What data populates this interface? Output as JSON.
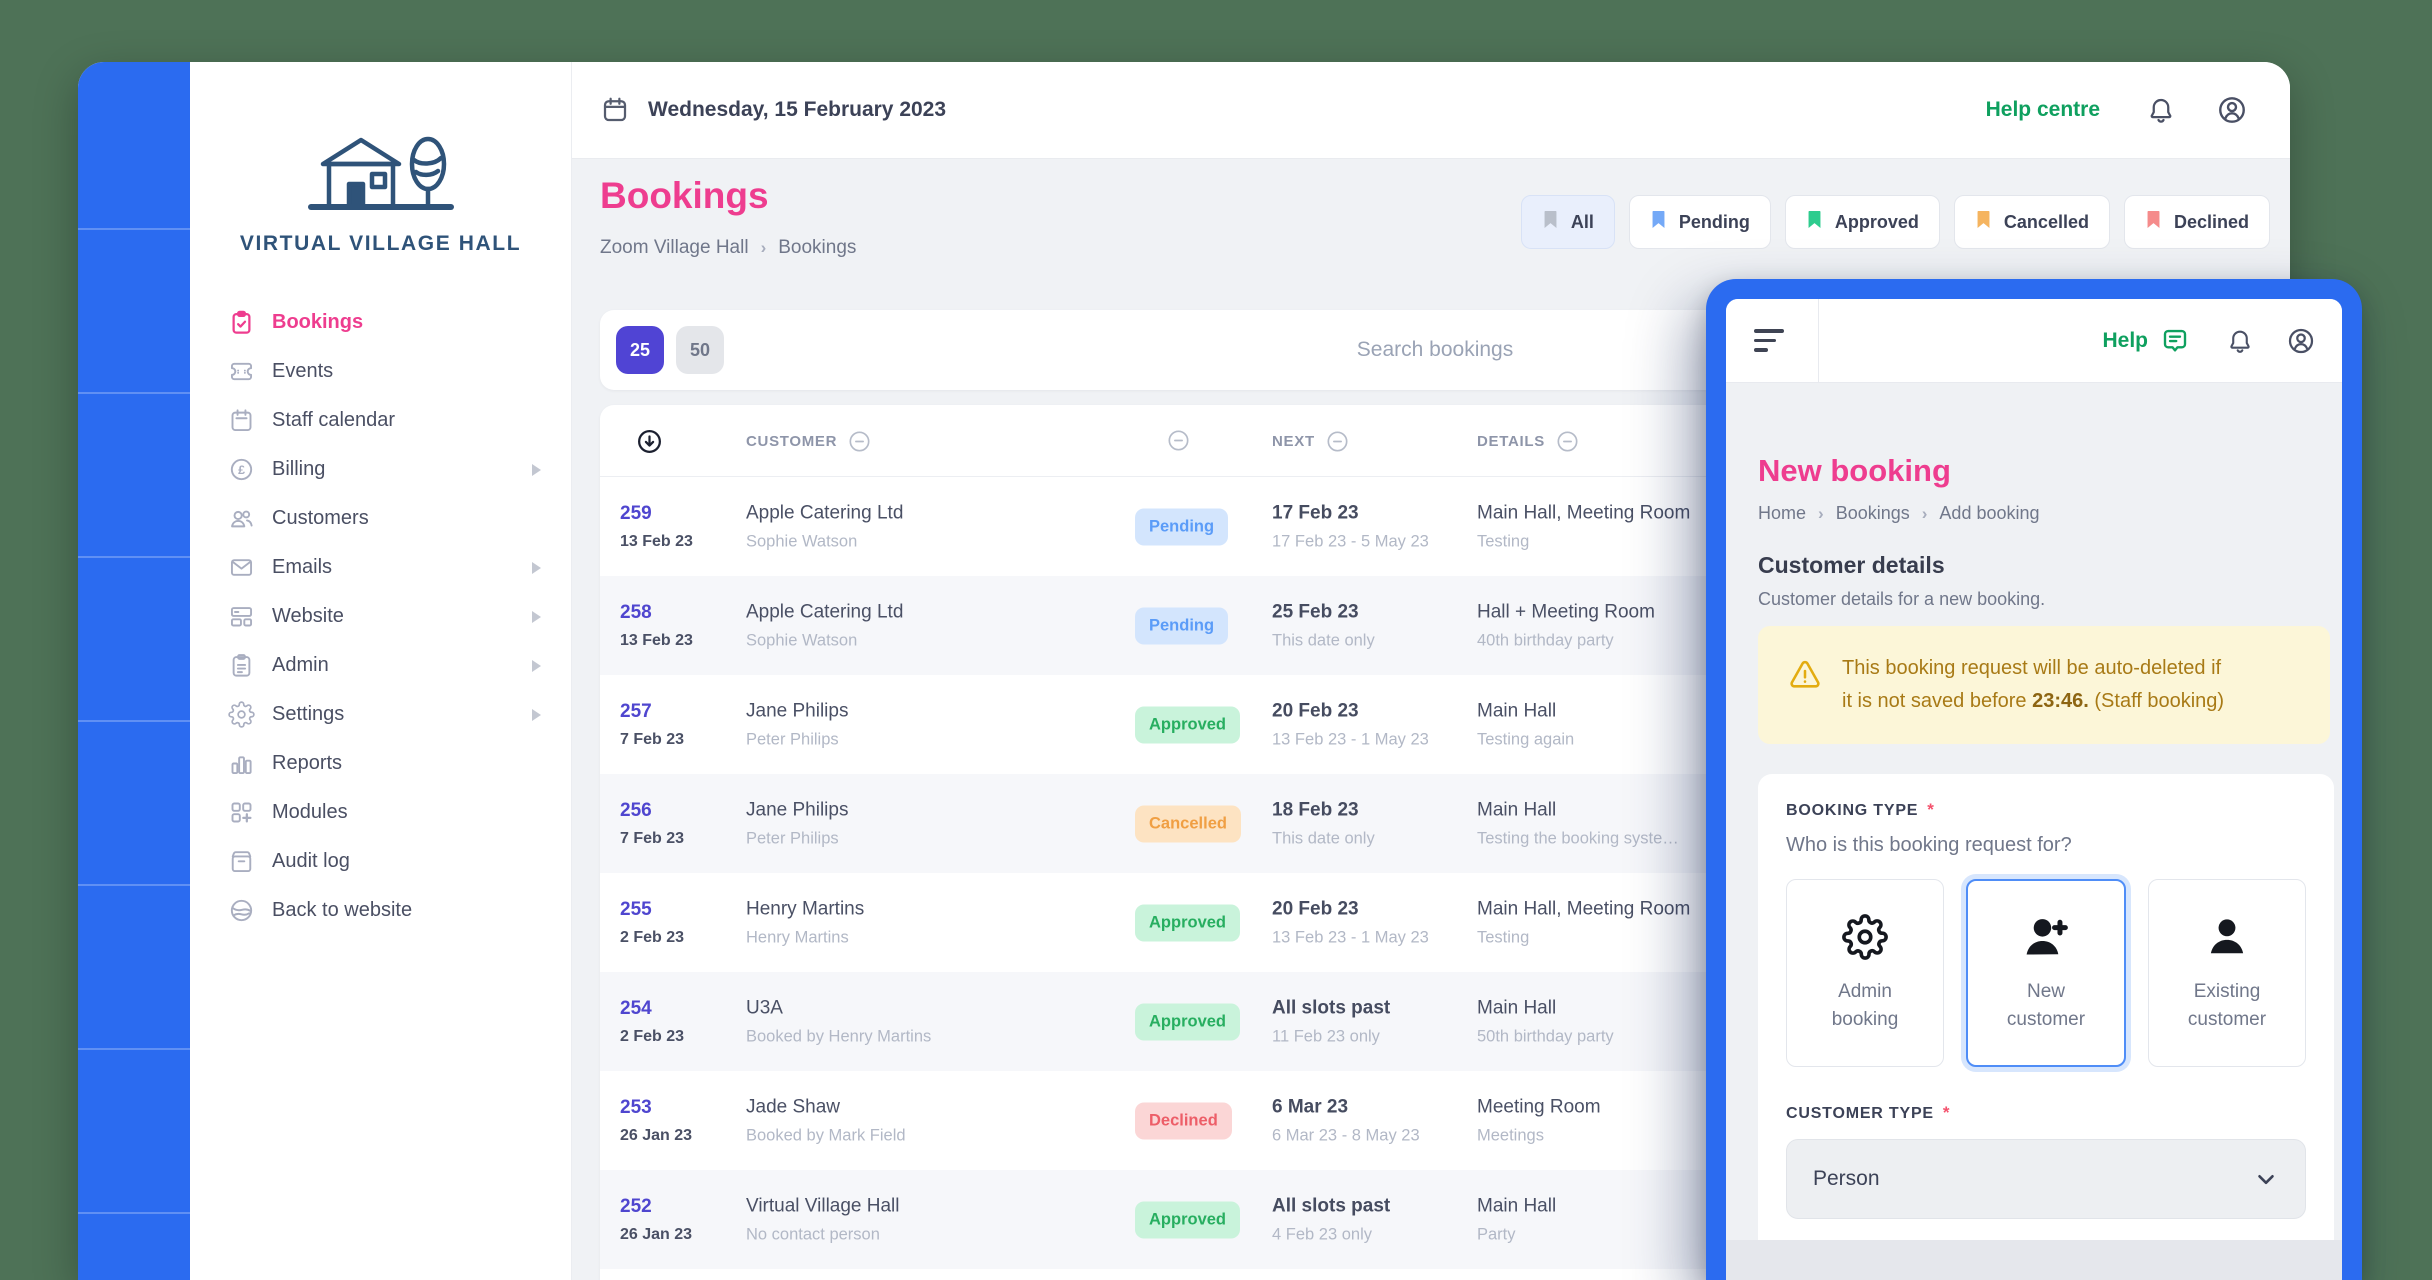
{
  "colors": {
    "background": "#4e7257",
    "accent_blue": "#2b6bf0",
    "accent_pink": "#ee3d8f",
    "accent_indigo": "#5044d4",
    "help_green": "#0fa05f",
    "logo_navy": "#2f5379",
    "warning_bg": "#fcf6d8",
    "warning_text": "#a87a16"
  },
  "status_styles": {
    "Pending": {
      "bg": "#d3e5fd",
      "fg": "#5b9cf8"
    },
    "Approved": {
      "bg": "#c9f3db",
      "fg": "#27ae60"
    },
    "Cancelled": {
      "bg": "#fde3c2",
      "fg": "#f09f43"
    },
    "Declined": {
      "bg": "#fbd6d6",
      "fg": "#ed5e68"
    }
  },
  "app": {
    "topbar": {
      "date": "Wednesday, 15 February 2023",
      "help_link": "Help centre"
    },
    "sidebar": {
      "logo_text": "VIRTUAL VILLAGE HALL",
      "items": [
        {
          "id": "bookings",
          "label": "Bookings",
          "icon": "bookings",
          "active": true,
          "chevron": false
        },
        {
          "id": "events",
          "label": "Events",
          "icon": "events",
          "active": false,
          "chevron": false
        },
        {
          "id": "staff-calendar",
          "label": "Staff calendar",
          "icon": "calendar",
          "active": false,
          "chevron": false
        },
        {
          "id": "billing",
          "label": "Billing",
          "icon": "billing",
          "active": false,
          "chevron": true
        },
        {
          "id": "customers",
          "label": "Customers",
          "icon": "customers",
          "active": false,
          "chevron": false
        },
        {
          "id": "emails",
          "label": "Emails",
          "icon": "emails",
          "active": false,
          "chevron": true
        },
        {
          "id": "website",
          "label": "Website",
          "icon": "website",
          "active": false,
          "chevron": true
        },
        {
          "id": "admin",
          "label": "Admin",
          "icon": "admin",
          "active": false,
          "chevron": true
        },
        {
          "id": "settings",
          "label": "Settings",
          "icon": "gear",
          "active": false,
          "chevron": true
        },
        {
          "id": "reports",
          "label": "Reports",
          "icon": "reports",
          "active": false,
          "chevron": false
        },
        {
          "id": "modules",
          "label": "Modules",
          "icon": "modules",
          "active": false,
          "chevron": false
        },
        {
          "id": "audit-log",
          "label": "Audit log",
          "icon": "audit",
          "active": false,
          "chevron": false
        },
        {
          "id": "back-to-website",
          "label": "Back to website",
          "icon": "globe",
          "active": false,
          "chevron": false
        }
      ]
    },
    "page": {
      "title": "Bookings",
      "breadcrumb": [
        "Zoom Village Hall",
        "Bookings"
      ],
      "filters": [
        {
          "label": "All",
          "color": "#b9bfca",
          "selected": true
        },
        {
          "label": "Pending",
          "color": "#74a9f7",
          "selected": false
        },
        {
          "label": "Approved",
          "color": "#2ecc8e",
          "selected": false
        },
        {
          "label": "Cancelled",
          "color": "#f5b45f",
          "selected": false
        },
        {
          "label": "Declined",
          "color": "#f58b8b",
          "selected": false
        }
      ],
      "page_sizes": [
        {
          "label": "25",
          "selected": true
        },
        {
          "label": "50",
          "selected": false
        }
      ],
      "search_placeholder": "Search bookings",
      "table": {
        "headers": {
          "customer": "CUSTOMER",
          "next": "NEXT",
          "details": "DETAILS"
        },
        "rows": [
          {
            "id": "259",
            "created": "13 Feb 23",
            "customer": "Apple Catering Ltd",
            "contact": "Sophie Watson",
            "status": "Pending",
            "next": "17 Feb 23",
            "next_sub": "17 Feb 23 - 5 May 23",
            "details": "Main Hall, Meeting Room",
            "details_sub": "Testing"
          },
          {
            "id": "258",
            "created": "13 Feb 23",
            "customer": "Apple Catering Ltd",
            "contact": "Sophie Watson",
            "status": "Pending",
            "next": "25 Feb 23",
            "next_sub": "This date only",
            "details": "Hall + Meeting Room",
            "details_sub": "40th birthday party"
          },
          {
            "id": "257",
            "created": "7 Feb 23",
            "customer": "Jane Philips",
            "contact": "Peter Philips",
            "status": "Approved",
            "next": "20 Feb 23",
            "next_sub": "13 Feb 23 - 1 May 23",
            "details": "Main Hall",
            "details_sub": "Testing again"
          },
          {
            "id": "256",
            "created": "7 Feb 23",
            "customer": "Jane Philips",
            "contact": "Peter Philips",
            "status": "Cancelled",
            "next": "18 Feb 23",
            "next_sub": "This date only",
            "details": "Main Hall",
            "details_sub": "Testing the booking syste…"
          },
          {
            "id": "255",
            "created": "2 Feb 23",
            "customer": "Henry Martins",
            "contact": "Henry Martins",
            "status": "Approved",
            "next": "20 Feb 23",
            "next_sub": "13 Feb 23 - 1 May 23",
            "details": "Main Hall, Meeting Room",
            "details_sub": "Testing"
          },
          {
            "id": "254",
            "created": "2 Feb 23",
            "customer": "U3A",
            "contact": "Booked by Henry Martins",
            "status": "Approved",
            "next": "All slots past",
            "next_sub": "11 Feb 23 only",
            "details": "Main Hall",
            "details_sub": "50th birthday party"
          },
          {
            "id": "253",
            "created": "26 Jan 23",
            "customer": "Jade Shaw",
            "contact": "Booked by Mark Field",
            "status": "Declined",
            "next": "6 Mar 23",
            "next_sub": "6 Mar 23 - 8 May 23",
            "details": "Meeting Room",
            "details_sub": "Meetings"
          },
          {
            "id": "252",
            "created": "26 Jan 23",
            "customer": "Virtual Village Hall",
            "contact": "No contact person",
            "status": "Approved",
            "next": "All slots past",
            "next_sub": "4 Feb 23 only",
            "details": "Main Hall",
            "details_sub": "Party"
          }
        ]
      }
    }
  },
  "panel": {
    "help_label": "Help",
    "title": "New booking",
    "breadcrumb": [
      "Home",
      "Bookings",
      "Add booking"
    ],
    "section": {
      "title": "Customer details",
      "subtitle": "Customer details for a new booking."
    },
    "warning": {
      "line1": "This booking request will be auto-deleted if",
      "line2_pre": "it is not saved before ",
      "time": "23:46.",
      "line2_post": " (Staff booking)"
    },
    "booking_type": {
      "label": "BOOKING TYPE",
      "required": "*",
      "question": "Who is this booking request for?",
      "options": [
        {
          "id": "admin-booking",
          "label": "Admin booking",
          "icon": "gear-black",
          "selected": false
        },
        {
          "id": "new-customer",
          "label": "New customer",
          "icon": "person-plus",
          "selected": true
        },
        {
          "id": "existing-customer",
          "label": "Existing customer",
          "icon": "person",
          "selected": false
        }
      ]
    },
    "customer_type": {
      "label": "CUSTOMER TYPE",
      "required": "*",
      "value": "Person"
    }
  }
}
